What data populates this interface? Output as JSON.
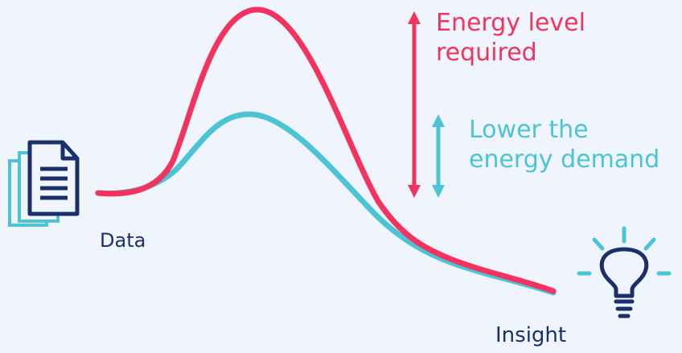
{
  "colors": {
    "background": "#f0f5fd",
    "high_energy_curve": "#f4325f",
    "low_energy_curve": "#4bc4d6",
    "icon_navy": "#1b2f6b",
    "icon_teal": "#4bc4d6",
    "data_label": "#1b2f6b",
    "insight_label": "#1b2f6b"
  },
  "icons": {
    "documents": "document-stack-icon",
    "insight": "lightbulb-icon",
    "energy_arrow": "double-arrow-vertical",
    "demand_arrow": "double-arrow-vertical"
  },
  "labels": {
    "energy_level": [
      "Energy level",
      "required"
    ],
    "lower_demand": [
      "Lower the",
      "energy demand"
    ],
    "data": "Data",
    "insight": "Insight"
  }
}
